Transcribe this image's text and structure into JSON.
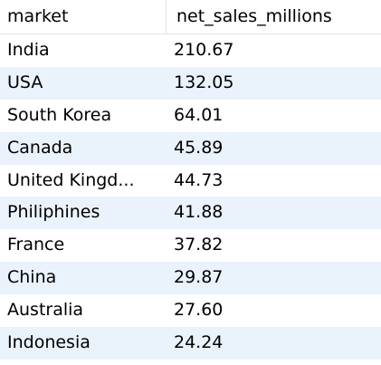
{
  "table": {
    "columns": [
      "market",
      "net_sales_millions"
    ],
    "rows": [
      [
        "India",
        "210.67"
      ],
      [
        "USA",
        "132.05"
      ],
      [
        "South Korea",
        "64.01"
      ],
      [
        "Canada",
        "45.89"
      ],
      [
        "United Kingd...",
        "44.73"
      ],
      [
        "Philiphines",
        "41.88"
      ],
      [
        "France",
        "37.82"
      ],
      [
        "China",
        "29.87"
      ],
      [
        "Australia",
        "27.60"
      ],
      [
        "Indonesia",
        "24.24"
      ]
    ]
  }
}
